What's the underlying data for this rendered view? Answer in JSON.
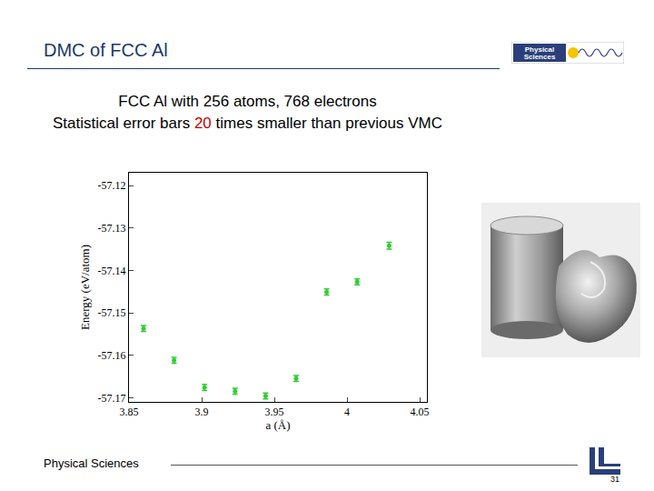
{
  "slide": {
    "title": "DMC of FCC Al",
    "line1": "FCC Al with 256 atoms, 768 electrons",
    "line2": {
      "before": "Statistical error bars",
      "highlight": "20",
      "after": "times smaller than previous VMC"
    },
    "logo": [
      "Physical",
      "Sciences"
    ],
    "footer": "Physical Sciences",
    "page": 31
  },
  "chart_data": {
    "type": "scatter",
    "x_label": "a (Å)",
    "y_label": "Energy (eV/atom)",
    "x": [
      3.86,
      3.881,
      3.902,
      3.923,
      3.944,
      3.965,
      3.986,
      4.007,
      4.029
    ],
    "values": [
      -57.1537,
      -57.1612,
      -57.1676,
      -57.1685,
      -57.1696,
      -57.1655,
      -57.1451,
      -57.1427,
      -57.1342
    ],
    "errors": [
      0.0007,
      0.0007,
      0.0007,
      0.0007,
      0.0007,
      0.0007,
      0.0007,
      0.0007,
      0.0008
    ],
    "color": "#33cc33",
    "marker": "circle",
    "xlim": [
      3.85,
      4.055
    ],
    "ylim": [
      -57.171,
      -57.117
    ],
    "xticks": [
      3.85,
      3.9,
      3.95,
      4,
      4.05
    ],
    "yticks": [
      -57.12,
      -57.13,
      -57.14,
      -57.15,
      -57.16,
      -57.17
    ],
    "grid": false
  }
}
